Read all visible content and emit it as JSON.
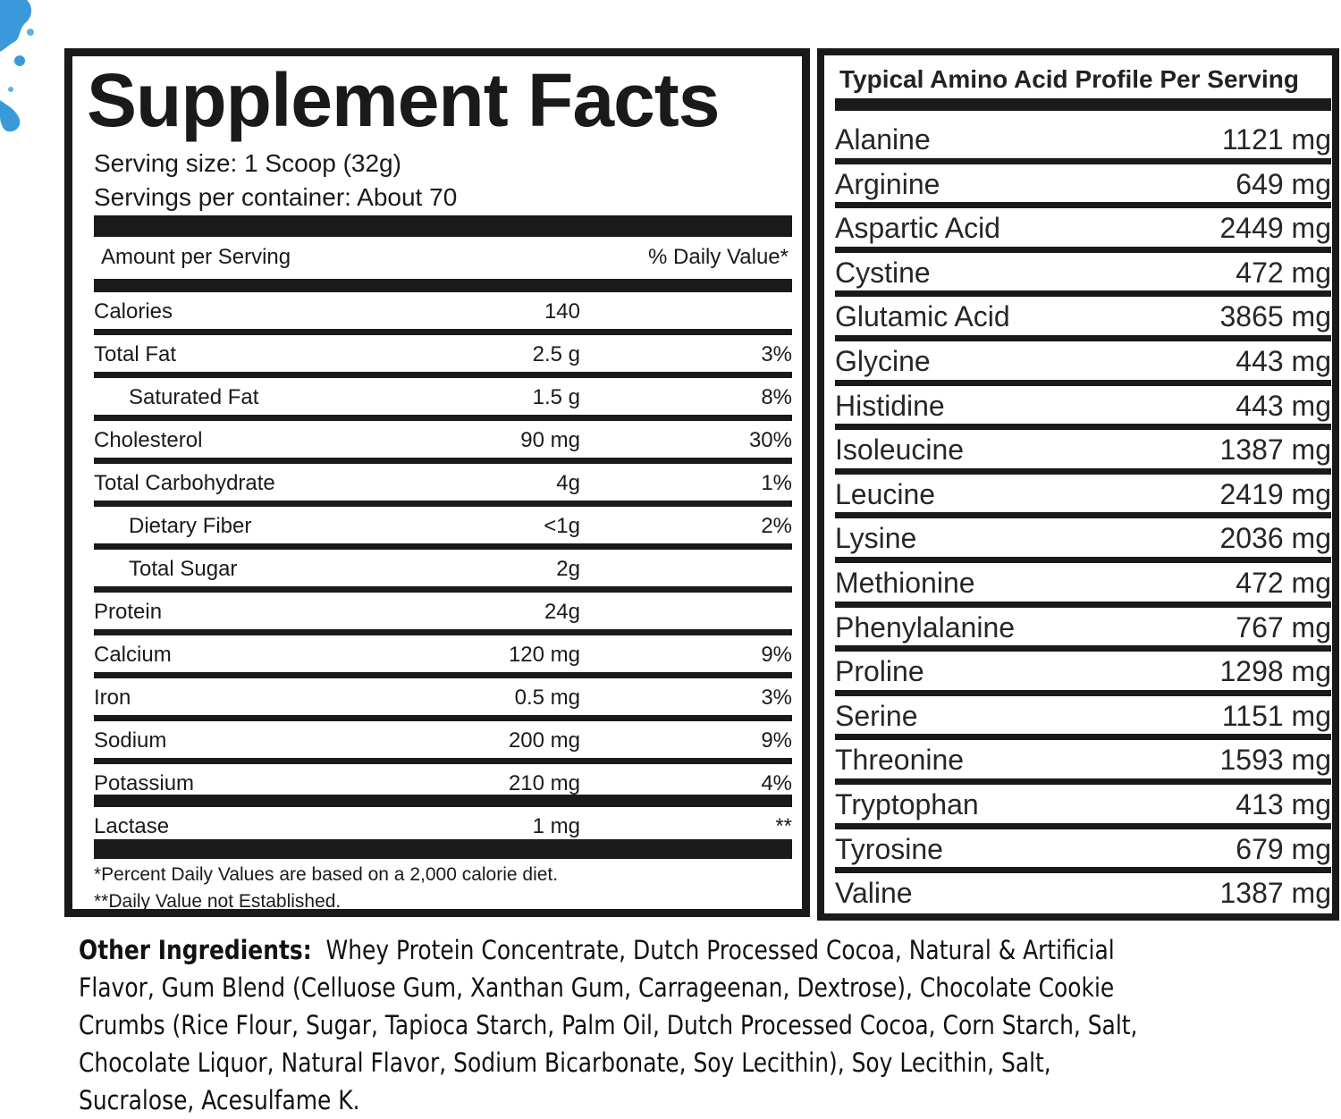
{
  "supplement_facts": {
    "title": "Supplement Facts",
    "serving_size": "Serving size: 1 Scoop (32g)",
    "servings_per_container": "Servings per container: About 70",
    "header_left": "Amount per Serving",
    "header_right": "% Daily Value*",
    "rows": [
      {
        "name": "Calories",
        "amount": "140",
        "dv": ""
      },
      {
        "name": "Total Fat",
        "amount": "2.5 g",
        "dv": "3%"
      },
      {
        "name": "Saturated Fat",
        "amount": "1.5 g",
        "dv": "8%"
      },
      {
        "name": "Cholesterol",
        "amount": "90 mg",
        "dv": "30%"
      },
      {
        "name": "Total Carbohydrate",
        "amount": "4g",
        "dv": "1%"
      },
      {
        "name": "Dietary Fiber",
        "amount": "<1g",
        "dv": "2%"
      },
      {
        "name": "Total Sugar",
        "amount": "2g",
        "dv": ""
      },
      {
        "name": "Protein",
        "amount": "24g",
        "dv": ""
      },
      {
        "name": "Calcium",
        "amount": "120 mg",
        "dv": "9%"
      },
      {
        "name": "Iron",
        "amount": "0.5 mg",
        "dv": "3%"
      },
      {
        "name": "Sodium",
        "amount": "200 mg",
        "dv": "9%"
      },
      {
        "name": "Potassium",
        "amount": "210 mg",
        "dv": "4%"
      },
      {
        "name": "Lactase",
        "amount": "1 mg",
        "dv": "**"
      }
    ],
    "footnote_1": "*Percent Daily Values are based on a 2,000 calorie diet.",
    "footnote_2": "**Daily Value not Established."
  },
  "amino_profile": {
    "title": "Typical Amino Acid Profile Per Serving",
    "rows": [
      {
        "name": "Alanine",
        "amount": "1121 mg"
      },
      {
        "name": "Arginine",
        "amount": "649 mg"
      },
      {
        "name": "Aspartic Acid",
        "amount": "2449 mg"
      },
      {
        "name": "Cystine",
        "amount": "472 mg"
      },
      {
        "name": "Glutamic Acid",
        "amount": "3865 mg"
      },
      {
        "name": "Glycine",
        "amount": "443 mg"
      },
      {
        "name": "Histidine",
        "amount": "443 mg"
      },
      {
        "name": "Isoleucine",
        "amount": "1387 mg"
      },
      {
        "name": "Leucine",
        "amount": "2419 mg"
      },
      {
        "name": "Lysine",
        "amount": "2036 mg"
      },
      {
        "name": "Methionine",
        "amount": "472 mg"
      },
      {
        "name": "Phenylalanine",
        "amount": "767 mg"
      },
      {
        "name": "Proline",
        "amount": "1298 mg"
      },
      {
        "name": "Serine",
        "amount": "1151 mg"
      },
      {
        "name": "Threonine",
        "amount": "1593 mg"
      },
      {
        "name": "Tryptophan",
        "amount": "413 mg"
      },
      {
        "name": "Tyrosine",
        "amount": "679 mg"
      },
      {
        "name": "Valine",
        "amount": "1387 mg"
      }
    ]
  },
  "other_ingredients": {
    "label": "Other Ingredients:",
    "text": "Whey Protein Concentrate, Dutch Processed Cocoa, Natural & Artificial Flavor, Gum Blend (Celluose Gum, Xanthan Gum, Carrageenan, Dextrose), Chocolate Cookie Crumbs (Rice Flour, Sugar, Tapioca Starch, Palm Oil, Dutch Processed Cocoa, Corn Starch, Salt, Chocolate Liquor, Natural Flavor, Sodium Bicarbonate, Soy Lecithin), Soy Lecithin, Salt, Sucralose, Acesulfame K."
  },
  "colors": {
    "ink": "#1a1a1a",
    "splash": "#3a9ad9"
  }
}
